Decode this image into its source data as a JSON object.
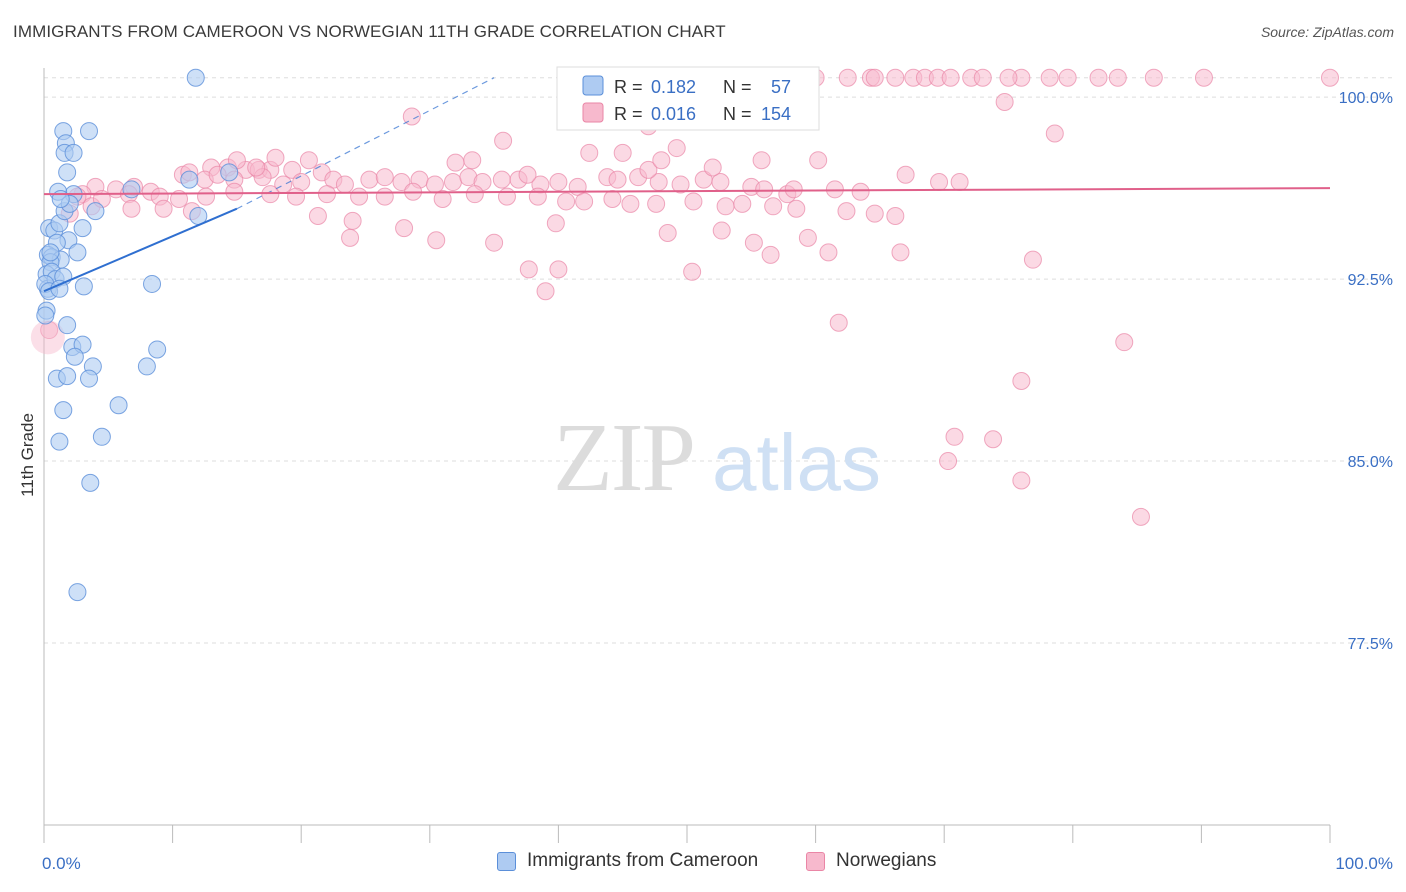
{
  "title": "IMMIGRANTS FROM CAMEROON VS NORWEGIAN 11TH GRADE CORRELATION CHART",
  "source": "Source: ZipAtlas.com",
  "watermark": {
    "zip": "ZIP",
    "atlas": "atlas"
  },
  "colors": {
    "blue_fill": "#aecbf2",
    "blue_stroke": "#5b8fd9",
    "blue_line": "#2f6fd0",
    "pink_fill": "#f7b9cd",
    "pink_stroke": "#ea86a6",
    "pink_line": "#e0608a",
    "tick_label": "#3a6fc4",
    "grid": "#dddddd"
  },
  "stats_legend": {
    "rows": [
      {
        "r_label": "R =",
        "r_value": "0.182",
        "n_label": "N =",
        "n_value": "57"
      },
      {
        "r_label": "R =",
        "r_value": "0.016",
        "n_label": "N =",
        "n_value": "154"
      }
    ]
  },
  "bottom_legend": {
    "series1": "Immigrants from Cameroon",
    "series2": "Norwegians"
  },
  "chart_data": {
    "type": "scatter",
    "title": "IMMIGRANTS FROM CAMEROON VS NORWEGIAN 11TH GRADE CORRELATION CHART",
    "xlabel": "",
    "ylabel": "11th Grade",
    "xlim": [
      0,
      100
    ],
    "ylim": [
      70,
      101.2
    ],
    "x_tick_labels": [
      "0.0%",
      "100.0%"
    ],
    "y_ticks": [
      77.5,
      85.0,
      92.5,
      100.0
    ],
    "y_tick_labels": [
      "77.5%",
      "85.0%",
      "92.5%",
      "100.0%"
    ],
    "grid": true,
    "legend_position": "top-center",
    "series": [
      {
        "name": "Immigrants from Cameroon",
        "R": 0.182,
        "N": 57,
        "trend": {
          "x0": 0,
          "y0": 92.0,
          "x1": 15,
          "y1": 95.4,
          "dashed_to_x": 35,
          "dashed_to_y": 100.8
        },
        "points": [
          [
            11.8,
            100.8
          ],
          [
            3.5,
            98.6
          ],
          [
            1.5,
            98.6
          ],
          [
            1.7,
            98.1
          ],
          [
            1.6,
            97.7
          ],
          [
            2.3,
            97.7
          ],
          [
            1.8,
            96.9
          ],
          [
            11.3,
            96.6
          ],
          [
            14.4,
            96.9
          ],
          [
            2.3,
            96.0
          ],
          [
            4.0,
            95.3
          ],
          [
            1.1,
            96.1
          ],
          [
            0.4,
            94.6
          ],
          [
            0.8,
            94.5
          ],
          [
            3.0,
            94.6
          ],
          [
            1.2,
            94.8
          ],
          [
            1.6,
            95.3
          ],
          [
            1.9,
            94.1
          ],
          [
            1.0,
            94.0
          ],
          [
            0.3,
            93.5
          ],
          [
            0.6,
            93.4
          ],
          [
            1.3,
            93.3
          ],
          [
            0.5,
            93.2
          ],
          [
            2.6,
            93.6
          ],
          [
            0.2,
            92.7
          ],
          [
            0.6,
            92.8
          ],
          [
            0.3,
            92.1
          ],
          [
            0.9,
            92.5
          ],
          [
            1.5,
            92.6
          ],
          [
            0.1,
            92.3
          ],
          [
            0.4,
            92.0
          ],
          [
            1.2,
            92.1
          ],
          [
            3.1,
            92.2
          ],
          [
            8.4,
            92.3
          ],
          [
            12.0,
            95.1
          ],
          [
            6.8,
            96.2
          ],
          [
            0.2,
            91.2
          ],
          [
            0.1,
            91.0
          ],
          [
            1.8,
            90.6
          ],
          [
            2.2,
            89.7
          ],
          [
            3.0,
            89.8
          ],
          [
            8.8,
            89.6
          ],
          [
            2.4,
            89.3
          ],
          [
            8.0,
            88.9
          ],
          [
            3.8,
            88.9
          ],
          [
            1.0,
            88.4
          ],
          [
            1.8,
            88.5
          ],
          [
            3.5,
            88.4
          ],
          [
            5.8,
            87.3
          ],
          [
            1.5,
            87.1
          ],
          [
            4.5,
            86.0
          ],
          [
            1.2,
            85.8
          ],
          [
            3.6,
            84.1
          ],
          [
            2.6,
            79.6
          ],
          [
            0.5,
            93.6
          ],
          [
            2.0,
            95.6
          ],
          [
            1.3,
            95.8
          ]
        ]
      },
      {
        "name": "Norwegians",
        "R": 0.016,
        "N": 154,
        "trend": {
          "x0": 0,
          "y0": 96.0,
          "x1": 100,
          "y1": 96.25
        },
        "points": [
          [
            60.0,
            100.8
          ],
          [
            62.5,
            100.8
          ],
          [
            64.3,
            100.8
          ],
          [
            64.6,
            100.8
          ],
          [
            66.2,
            100.8
          ],
          [
            67.6,
            100.8
          ],
          [
            68.5,
            100.8
          ],
          [
            69.5,
            100.8
          ],
          [
            70.5,
            100.8
          ],
          [
            72.1,
            100.8
          ],
          [
            73.0,
            100.8
          ],
          [
            76.0,
            100.8
          ],
          [
            78.2,
            100.8
          ],
          [
            79.6,
            100.8
          ],
          [
            82.0,
            100.8
          ],
          [
            83.5,
            100.8
          ],
          [
            86.3,
            100.8
          ],
          [
            90.2,
            100.8
          ],
          [
            100.0,
            100.8
          ],
          [
            74.7,
            99.8
          ],
          [
            28.6,
            99.2
          ],
          [
            47.0,
            98.8
          ],
          [
            46.5,
            99.5
          ],
          [
            78.6,
            98.5
          ],
          [
            35.7,
            98.2
          ],
          [
            42.4,
            97.7
          ],
          [
            45.0,
            97.7
          ],
          [
            49.2,
            97.9
          ],
          [
            33.3,
            97.4
          ],
          [
            55.8,
            97.4
          ],
          [
            60.2,
            97.4
          ],
          [
            32.0,
            97.3
          ],
          [
            13.0,
            97.1
          ],
          [
            14.3,
            97.1
          ],
          [
            15.7,
            97.0
          ],
          [
            16.7,
            97.0
          ],
          [
            17.6,
            97.0
          ],
          [
            19.3,
            97.0
          ],
          [
            21.6,
            96.9
          ],
          [
            10.8,
            96.8
          ],
          [
            11.3,
            96.9
          ],
          [
            12.5,
            96.6
          ],
          [
            13.5,
            96.8
          ],
          [
            14.8,
            96.6
          ],
          [
            17.0,
            96.7
          ],
          [
            18.6,
            96.4
          ],
          [
            20.0,
            96.5
          ],
          [
            22.5,
            96.6
          ],
          [
            23.4,
            96.4
          ],
          [
            25.3,
            96.6
          ],
          [
            26.5,
            96.7
          ],
          [
            27.8,
            96.5
          ],
          [
            29.2,
            96.6
          ],
          [
            30.4,
            96.4
          ],
          [
            31.8,
            96.5
          ],
          [
            33.0,
            96.7
          ],
          [
            34.1,
            96.5
          ],
          [
            35.6,
            96.6
          ],
          [
            36.9,
            96.6
          ],
          [
            38.6,
            96.4
          ],
          [
            40.0,
            96.5
          ],
          [
            41.5,
            96.3
          ],
          [
            43.8,
            96.7
          ],
          [
            44.6,
            96.6
          ],
          [
            47.8,
            96.5
          ],
          [
            49.5,
            96.4
          ],
          [
            51.3,
            96.6
          ],
          [
            52.6,
            96.5
          ],
          [
            55.0,
            96.3
          ],
          [
            56.0,
            96.2
          ],
          [
            57.8,
            96.0
          ],
          [
            58.3,
            96.2
          ],
          [
            63.5,
            96.1
          ],
          [
            67.0,
            96.8
          ],
          [
            69.6,
            96.5
          ],
          [
            71.2,
            96.5
          ],
          [
            4.0,
            96.3
          ],
          [
            5.6,
            96.2
          ],
          [
            7.0,
            96.3
          ],
          [
            8.3,
            96.1
          ],
          [
            3.0,
            96.0
          ],
          [
            2.6,
            95.9
          ],
          [
            3.7,
            95.5
          ],
          [
            6.6,
            96.0
          ],
          [
            9.0,
            95.9
          ],
          [
            10.5,
            95.8
          ],
          [
            12.6,
            95.9
          ],
          [
            14.8,
            96.1
          ],
          [
            17.6,
            96.0
          ],
          [
            19.6,
            95.9
          ],
          [
            22.0,
            96.0
          ],
          [
            24.5,
            95.9
          ],
          [
            26.5,
            95.9
          ],
          [
            28.7,
            96.1
          ],
          [
            31.0,
            95.8
          ],
          [
            33.5,
            96.0
          ],
          [
            36.0,
            95.9
          ],
          [
            38.4,
            95.9
          ],
          [
            40.6,
            95.7
          ],
          [
            42.0,
            95.7
          ],
          [
            44.2,
            95.8
          ],
          [
            45.6,
            95.6
          ],
          [
            47.6,
            95.6
          ],
          [
            50.5,
            95.7
          ],
          [
            53.0,
            95.5
          ],
          [
            54.3,
            95.6
          ],
          [
            56.7,
            95.5
          ],
          [
            58.5,
            95.4
          ],
          [
            62.4,
            95.3
          ],
          [
            64.6,
            95.2
          ],
          [
            66.2,
            95.1
          ],
          [
            2.0,
            95.2
          ],
          [
            6.8,
            95.4
          ],
          [
            9.3,
            95.4
          ],
          [
            11.5,
            95.3
          ],
          [
            21.3,
            95.1
          ],
          [
            24.0,
            94.9
          ],
          [
            28.0,
            94.6
          ],
          [
            39.8,
            94.8
          ],
          [
            48.5,
            94.4
          ],
          [
            52.7,
            94.5
          ],
          [
            55.2,
            94.0
          ],
          [
            59.4,
            94.2
          ],
          [
            23.8,
            94.2
          ],
          [
            30.5,
            94.1
          ],
          [
            35.0,
            94.0
          ],
          [
            56.5,
            93.5
          ],
          [
            61.0,
            93.6
          ],
          [
            66.6,
            93.6
          ],
          [
            76.9,
            93.3
          ],
          [
            37.7,
            92.9
          ],
          [
            40.0,
            92.9
          ],
          [
            50.4,
            92.8
          ],
          [
            39.0,
            92.0
          ],
          [
            61.8,
            90.7
          ],
          [
            84.0,
            89.9
          ],
          [
            76.0,
            88.3
          ],
          [
            70.8,
            86.0
          ],
          [
            73.8,
            85.9
          ],
          [
            70.3,
            85.0
          ],
          [
            76.0,
            84.2
          ],
          [
            85.3,
            82.7
          ],
          [
            0.4,
            90.4
          ],
          [
            75.0,
            100.8
          ],
          [
            18.0,
            97.5
          ],
          [
            20.6,
            97.4
          ],
          [
            15.0,
            97.4
          ],
          [
            16.5,
            97.1
          ],
          [
            46.2,
            96.7
          ],
          [
            4.5,
            95.8
          ],
          [
            61.5,
            96.2
          ],
          [
            47.0,
            97.0
          ],
          [
            37.6,
            96.8
          ],
          [
            48.0,
            97.4
          ],
          [
            52.0,
            97.1
          ]
        ]
      }
    ]
  }
}
